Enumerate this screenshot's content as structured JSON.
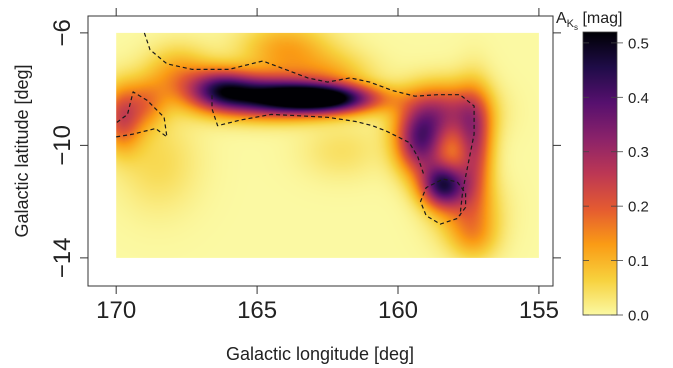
{
  "chart_data": {
    "type": "heatmap",
    "xlabel": "Galactic longitude [deg]",
    "ylabel": "Galactic latitude [deg]",
    "xlim": [
      171,
      154.5
    ],
    "ylim": [
      -15,
      -5.4
    ],
    "x_ticks": [
      170,
      165,
      160,
      155
    ],
    "y_ticks": [
      -6,
      -10,
      -14
    ],
    "grid": false,
    "colorbar": {
      "label_main": "A",
      "label_sub": "K",
      "label_subsub": "s",
      "label_unit": " [mag]",
      "range": [
        0,
        0.52
      ],
      "ticks": [
        0.0,
        0.1,
        0.2,
        0.3,
        0.4,
        0.5
      ],
      "tick_labels": [
        "0.0",
        "0.1",
        "0.2",
        "0.3",
        "0.4",
        "0.5"
      ],
      "colors": [
        "#fbf9a3",
        "#f7d13d",
        "#fa9b15",
        "#e45a31",
        "#bc3754",
        "#8a226a",
        "#56106e",
        "#1f0c48",
        "#000004"
      ]
    },
    "extinction_sources": [
      {
        "l": 162.6,
        "b": -8.35,
        "peak": 0.5,
        "sl": 1.3,
        "sb": 0.35
      },
      {
        "l": 164.6,
        "b": -8.25,
        "peak": 0.43,
        "sl": 1.4,
        "sb": 0.5
      },
      {
        "l": 166.3,
        "b": -8.0,
        "peak": 0.3,
        "sl": 0.8,
        "sb": 0.5
      },
      {
        "l": 167.8,
        "b": -7.5,
        "peak": 0.12,
        "sl": 0.8,
        "sb": 0.7
      },
      {
        "l": 164.0,
        "b": -6.6,
        "peak": 0.12,
        "sl": 1.1,
        "sb": 0.7
      },
      {
        "l": 162.3,
        "b": -7.5,
        "peak": 0.08,
        "sl": 1.0,
        "sb": 0.6
      },
      {
        "l": 158.4,
        "b": -8.8,
        "peak": 0.24,
        "sl": 1.0,
        "sb": 0.7
      },
      {
        "l": 159.2,
        "b": -9.9,
        "peak": 0.34,
        "sl": 0.6,
        "sb": 0.8
      },
      {
        "l": 158.4,
        "b": -11.4,
        "peak": 0.4,
        "sl": 0.55,
        "sb": 0.55
      },
      {
        "l": 157.3,
        "b": -10.0,
        "peak": 0.25,
        "sl": 0.45,
        "sb": 1.3
      },
      {
        "l": 157.6,
        "b": -12.3,
        "peak": 0.12,
        "sl": 0.8,
        "sb": 0.8
      },
      {
        "l": 157.3,
        "b": -13.3,
        "peak": 0.08,
        "sl": 0.6,
        "sb": 0.6
      },
      {
        "l": 169.8,
        "b": -9.0,
        "peak": 0.22,
        "sl": 0.5,
        "sb": 0.8
      },
      {
        "l": 168.9,
        "b": -8.5,
        "peak": 0.12,
        "sl": 0.5,
        "sb": 0.6
      },
      {
        "l": 168.5,
        "b": -10.6,
        "peak": 0.05,
        "sl": 1.0,
        "sb": 1.2
      },
      {
        "l": 162.0,
        "b": -10.2,
        "peak": 0.04,
        "sl": 1.0,
        "sb": 0.7
      }
    ],
    "contours_lb": [
      [
        [
          169.0,
          -6.0
        ],
        [
          168.8,
          -6.6
        ],
        [
          168.2,
          -7.1
        ],
        [
          167.3,
          -7.3
        ],
        [
          166.0,
          -7.3
        ],
        [
          164.8,
          -7.0
        ],
        [
          164.0,
          -7.3
        ],
        [
          163.2,
          -7.6
        ],
        [
          162.5,
          -7.75
        ],
        [
          161.7,
          -7.6
        ],
        [
          161.0,
          -7.75
        ],
        [
          160.2,
          -8.05
        ],
        [
          159.4,
          -8.25
        ],
        [
          158.6,
          -8.2
        ],
        [
          157.8,
          -8.2
        ],
        [
          157.3,
          -8.6
        ],
        [
          157.3,
          -9.6
        ],
        [
          157.5,
          -10.6
        ],
        [
          157.7,
          -11.6
        ],
        [
          157.8,
          -12.5
        ]
      ],
      [
        [
          157.9,
          -12.6
        ],
        [
          158.5,
          -12.8
        ],
        [
          159.0,
          -12.5
        ],
        [
          159.2,
          -12.0
        ],
        [
          159.0,
          -11.5
        ],
        [
          158.4,
          -11.2
        ],
        [
          157.9,
          -11.3
        ],
        [
          157.6,
          -11.7
        ],
        [
          157.6,
          -12.2
        ],
        [
          157.9,
          -12.6
        ]
      ],
      [
        [
          170.0,
          -9.7
        ],
        [
          169.4,
          -9.6
        ],
        [
          168.6,
          -9.4
        ],
        [
          168.2,
          -9.7
        ],
        [
          168.3,
          -9.0
        ],
        [
          168.9,
          -8.4
        ],
        [
          169.4,
          -8.1
        ],
        [
          169.6,
          -8.9
        ],
        [
          170.0,
          -9.2
        ]
      ],
      [
        [
          159.1,
          -11.0
        ],
        [
          159.3,
          -10.4
        ],
        [
          159.6,
          -9.9
        ],
        [
          160.0,
          -9.7
        ],
        [
          160.4,
          -9.5
        ],
        [
          160.9,
          -9.3
        ],
        [
          161.5,
          -9.15
        ],
        [
          162.5,
          -9.0
        ],
        [
          163.5,
          -8.95
        ],
        [
          164.5,
          -8.9
        ],
        [
          165.6,
          -9.1
        ],
        [
          166.4,
          -9.3
        ],
        [
          166.6,
          -8.7
        ],
        [
          166.6,
          -8.2
        ]
      ]
    ]
  }
}
